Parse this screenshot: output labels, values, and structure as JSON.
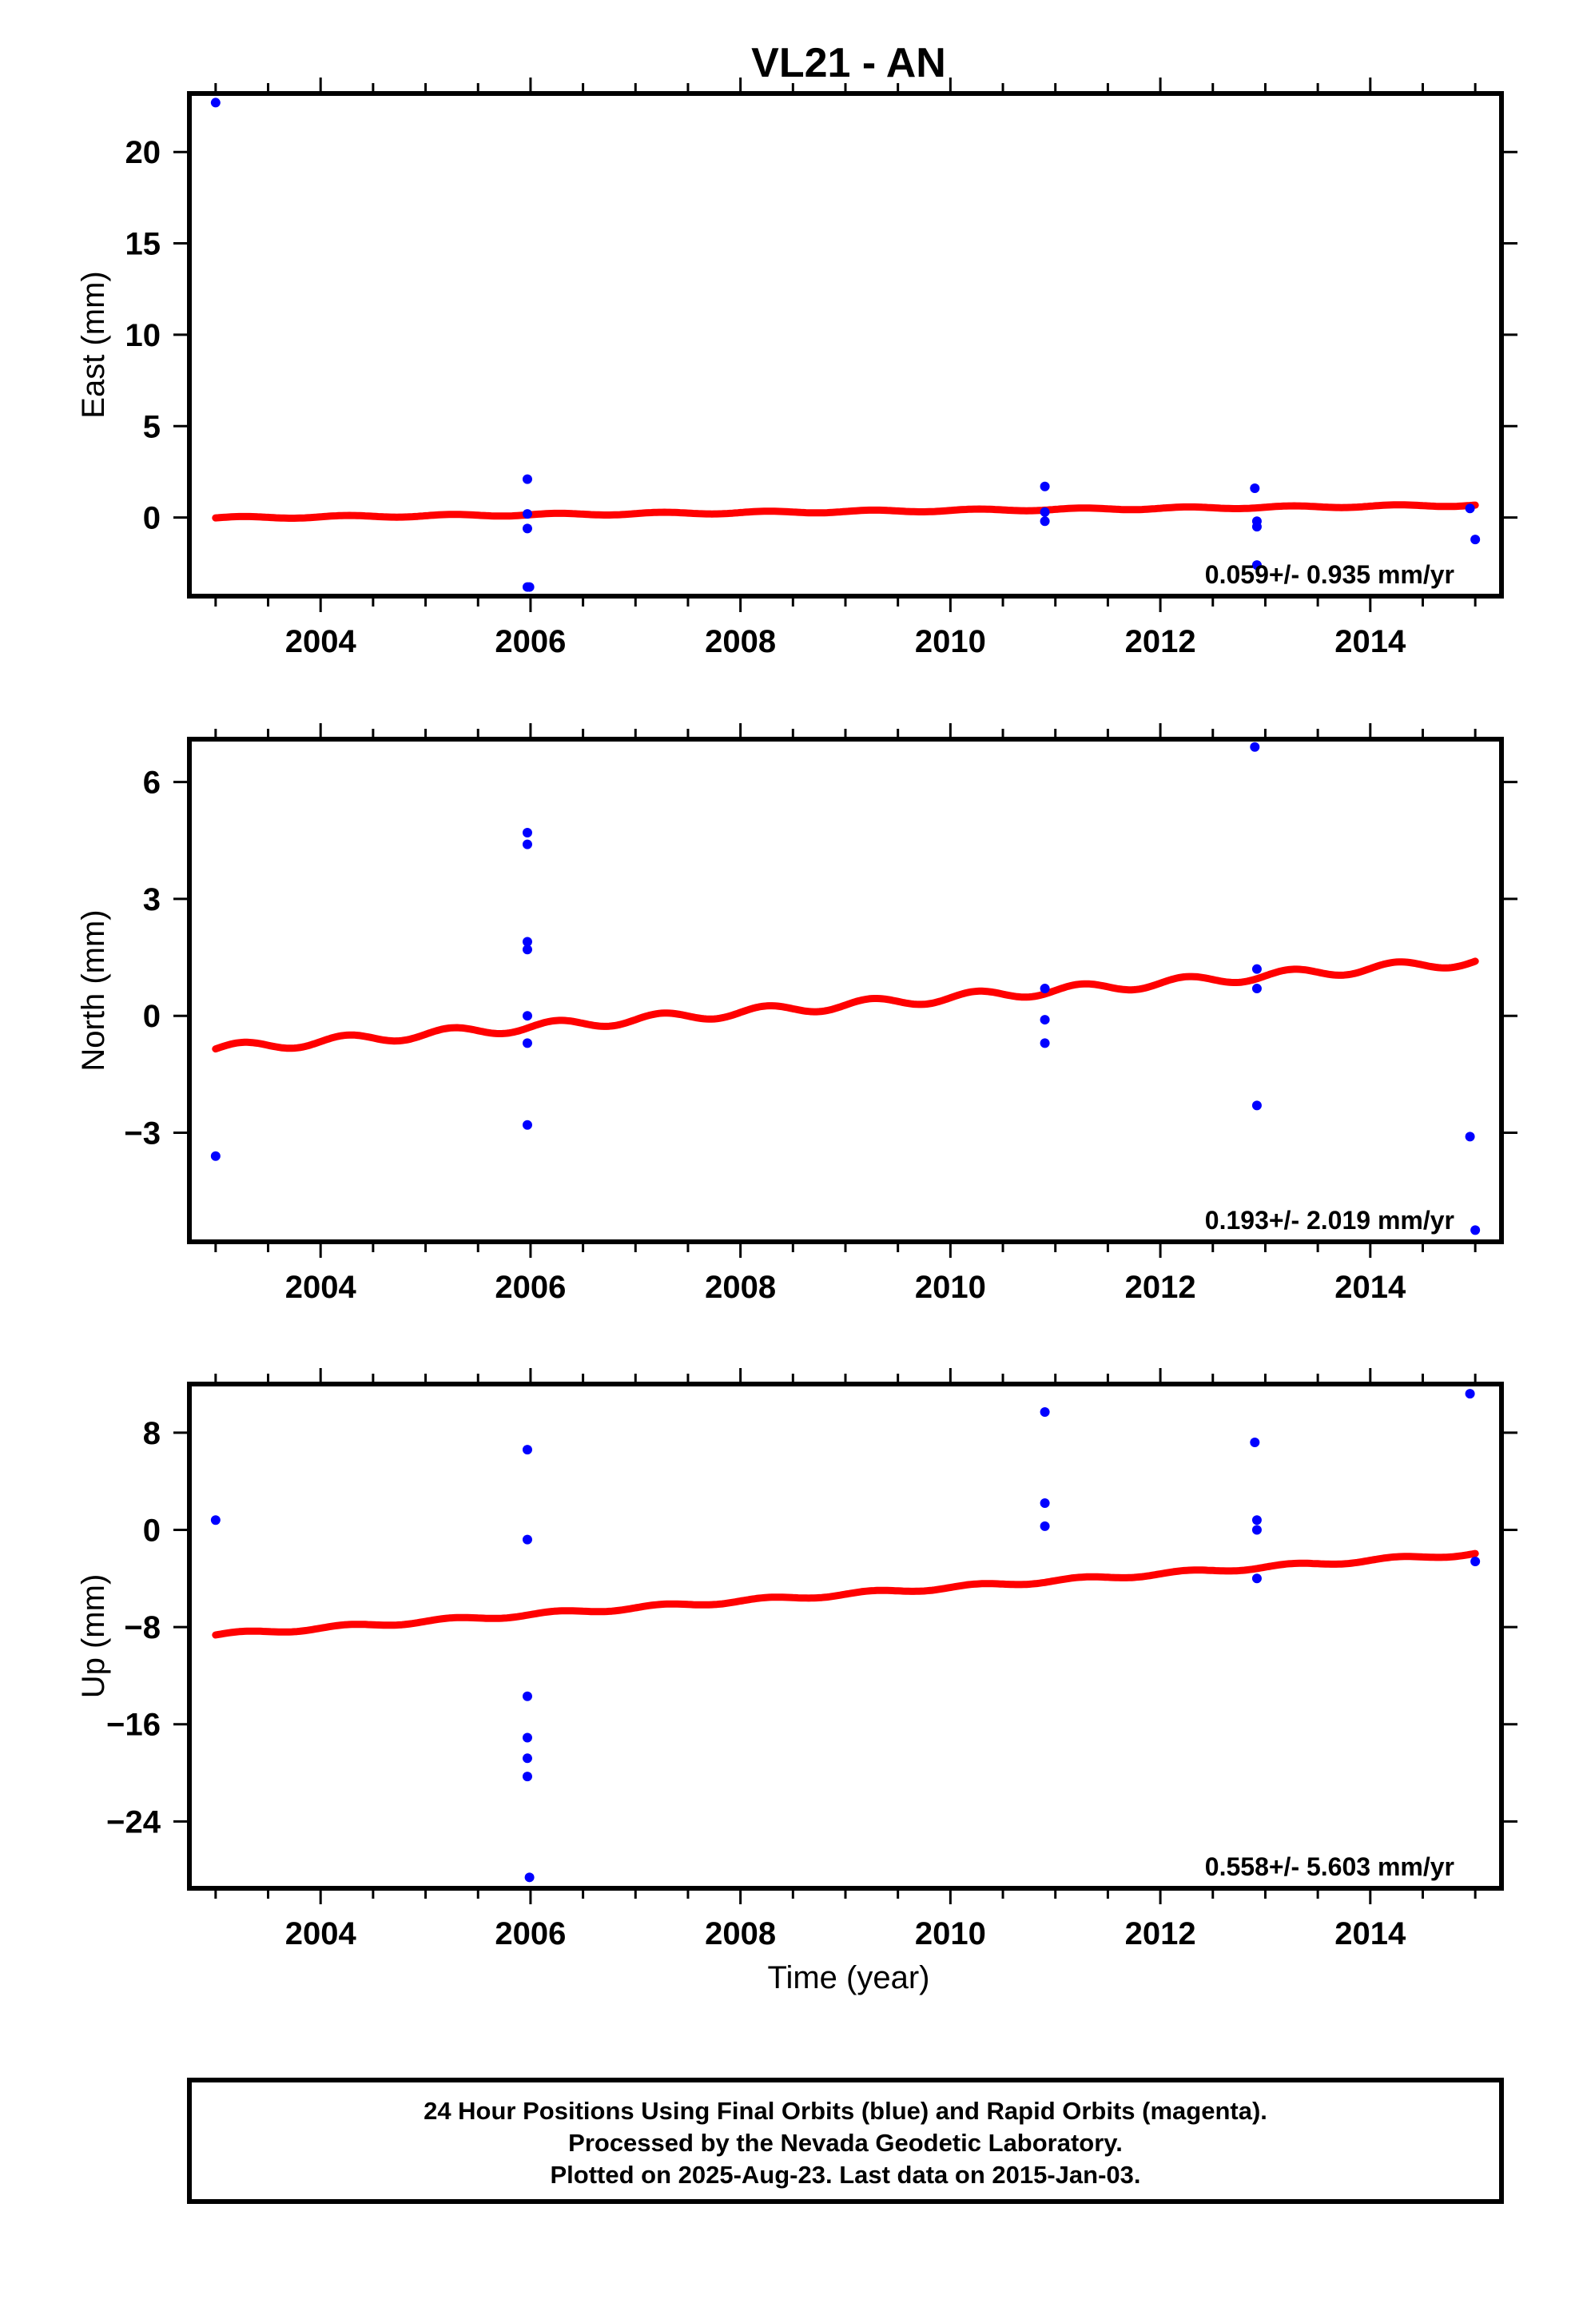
{
  "title": "VL21 - AN",
  "xlabel": "Time (year)",
  "colors": {
    "points": "#0000ff",
    "trend": "#ff0000",
    "axes": "#000000"
  },
  "caption": [
    "24 Hour Positions Using Final Orbits (blue) and Rapid Orbits (magenta).",
    "Processed by the Nevada Geodetic Laboratory.",
    "Plotted on 2025-Aug-23. Last data on 2015-Jan-03."
  ],
  "chart_data": [
    {
      "type": "scatter",
      "ylabel": "East (mm)",
      "rate": "0.059+/- 0.935 mm/yr",
      "xlim": [
        2002.75,
        2015.25
      ],
      "ylim": [
        -4.3,
        23.2
      ],
      "xticks": [
        2004,
        2006,
        2008,
        2010,
        2012,
        2014
      ],
      "yticks": [
        0,
        5,
        10,
        15,
        20
      ],
      "points": [
        [
          2003.0,
          22.7
        ],
        [
          2005.97,
          2.1
        ],
        [
          2005.97,
          0.2
        ],
        [
          2005.97,
          -0.6
        ],
        [
          2005.97,
          -3.8
        ],
        [
          2005.99,
          -3.8
        ],
        [
          2010.9,
          1.7
        ],
        [
          2010.9,
          0.3
        ],
        [
          2010.9,
          -0.2
        ],
        [
          2012.9,
          1.6
        ],
        [
          2012.92,
          -0.2
        ],
        [
          2012.92,
          -0.5
        ],
        [
          2012.92,
          -2.6
        ],
        [
          2014.95,
          0.5
        ],
        [
          2015.0,
          -1.2
        ]
      ],
      "trend": {
        "x0": 2003.0,
        "x1": 2015.0,
        "y0": -0.02,
        "y1": 0.68,
        "amplitude": 0.06
      }
    },
    {
      "type": "scatter",
      "ylabel": "North (mm)",
      "rate": "0.193+/- 2.019 mm/yr",
      "xlim": [
        2002.75,
        2015.25
      ],
      "ylim": [
        -5.8,
        7.1
      ],
      "xticks": [
        2004,
        2006,
        2008,
        2010,
        2012,
        2014
      ],
      "yticks": [
        -3,
        0,
        3,
        6
      ],
      "points": [
        [
          2003.0,
          -3.6
        ],
        [
          2005.97,
          4.7
        ],
        [
          2005.97,
          4.4
        ],
        [
          2005.97,
          1.9
        ],
        [
          2005.97,
          1.7
        ],
        [
          2005.97,
          0.0
        ],
        [
          2005.97,
          -0.7
        ],
        [
          2005.97,
          -2.8
        ],
        [
          2010.9,
          0.7
        ],
        [
          2010.9,
          -0.1
        ],
        [
          2010.9,
          -0.7
        ],
        [
          2012.9,
          6.9
        ],
        [
          2012.92,
          1.2
        ],
        [
          2012.92,
          0.7
        ],
        [
          2012.92,
          -2.3
        ],
        [
          2014.95,
          -3.1
        ],
        [
          2015.0,
          -5.5
        ]
      ],
      "trend": {
        "x0": 2003.0,
        "x1": 2015.0,
        "y0": -0.85,
        "y1": 1.4,
        "amplitude": 0.12
      }
    },
    {
      "type": "scatter",
      "ylabel": "Up (mm)",
      "rate": "0.558+/- 5.603 mm/yr",
      "xlim": [
        2002.75,
        2015.25
      ],
      "ylim": [
        -29.5,
        12.0
      ],
      "xticks": [
        2004,
        2006,
        2008,
        2010,
        2012,
        2014
      ],
      "yticks": [
        -24,
        -16,
        -8,
        0,
        8
      ],
      "points": [
        [
          2003.0,
          0.8
        ],
        [
          2005.97,
          6.6
        ],
        [
          2005.97,
          -0.8
        ],
        [
          2005.97,
          -13.7
        ],
        [
          2005.97,
          -17.1
        ],
        [
          2005.97,
          -18.8
        ],
        [
          2005.97,
          -20.3
        ],
        [
          2005.99,
          -28.6
        ],
        [
          2010.9,
          9.7
        ],
        [
          2010.9,
          2.2
        ],
        [
          2010.9,
          0.3
        ],
        [
          2012.9,
          7.2
        ],
        [
          2012.92,
          0.8
        ],
        [
          2012.92,
          0.0
        ],
        [
          2012.92,
          -4.0
        ],
        [
          2014.95,
          11.2
        ],
        [
          2015.0,
          -2.6
        ]
      ],
      "trend": {
        "x0": 2003.0,
        "x1": 2015.0,
        "y0": -8.65,
        "y1": -1.95,
        "amplitude": 0.15
      }
    }
  ]
}
